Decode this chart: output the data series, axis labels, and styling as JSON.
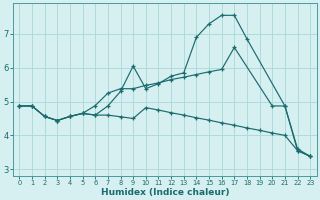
{
  "xlabel": "Humidex (Indice chaleur)",
  "bg_color": "#d6eff0",
  "grid_color": "#a8d8da",
  "line_color": "#1a6b6e",
  "xlim": [
    -0.5,
    23.5
  ],
  "ylim": [
    2.8,
    7.9
  ],
  "xticks": [
    0,
    1,
    2,
    3,
    4,
    5,
    6,
    7,
    8,
    9,
    10,
    11,
    12,
    13,
    14,
    15,
    16,
    17,
    18,
    19,
    20,
    21,
    22,
    23
  ],
  "yticks": [
    3,
    4,
    5,
    6,
    7
  ],
  "series": [
    {
      "x": [
        0,
        1,
        2,
        3,
        4,
        5,
        6,
        7,
        8,
        9,
        10,
        11,
        12,
        13,
        14,
        15,
        16,
        17,
        18,
        21,
        22,
        23
      ],
      "y": [
        4.87,
        4.87,
        4.56,
        4.44,
        4.56,
        4.65,
        4.6,
        4.87,
        5.3,
        6.05,
        5.38,
        5.53,
        5.75,
        5.85,
        6.9,
        7.3,
        7.55,
        7.55,
        6.85,
        4.87,
        3.6,
        3.38
      ]
    },
    {
      "x": [
        0,
        1,
        2,
        3,
        4,
        5,
        6,
        7,
        8,
        9,
        10,
        11,
        12,
        13,
        14,
        15,
        16,
        17,
        20,
        21,
        22,
        23
      ],
      "y": [
        4.87,
        4.87,
        4.56,
        4.44,
        4.56,
        4.65,
        4.88,
        5.25,
        5.38,
        5.38,
        5.48,
        5.55,
        5.65,
        5.72,
        5.8,
        5.88,
        5.95,
        6.6,
        4.87,
        4.87,
        3.55,
        3.38
      ]
    },
    {
      "x": [
        0,
        1,
        2,
        3,
        4,
        5,
        6,
        7,
        8,
        9,
        10,
        11,
        12,
        13,
        14,
        15,
        16,
        17,
        18,
        19,
        20,
        21,
        22,
        23
      ],
      "y": [
        4.87,
        4.87,
        4.56,
        4.44,
        4.56,
        4.65,
        4.6,
        4.6,
        4.55,
        4.5,
        4.82,
        4.75,
        4.67,
        4.6,
        4.52,
        4.45,
        4.37,
        4.3,
        4.22,
        4.15,
        4.07,
        4.0,
        3.55,
        3.38
      ]
    }
  ]
}
